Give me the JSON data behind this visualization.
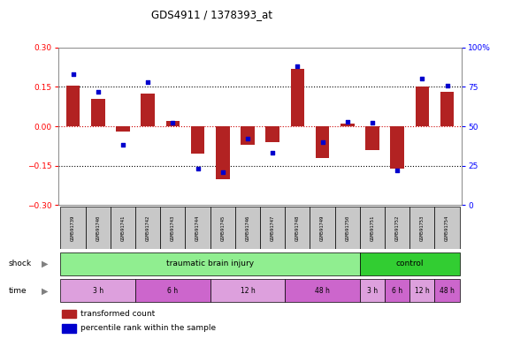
{
  "title": "GDS4911 / 1378393_at",
  "samples": [
    "GSM591739",
    "GSM591740",
    "GSM591741",
    "GSM591742",
    "GSM591743",
    "GSM591744",
    "GSM591745",
    "GSM591746",
    "GSM591747",
    "GSM591748",
    "GSM591749",
    "GSM591750",
    "GSM591751",
    "GSM591752",
    "GSM591753",
    "GSM591754"
  ],
  "bar_values": [
    0.155,
    0.105,
    -0.02,
    0.125,
    0.02,
    -0.105,
    -0.2,
    -0.07,
    -0.06,
    0.22,
    -0.12,
    0.01,
    -0.09,
    -0.16,
    0.15,
    0.13
  ],
  "dot_values": [
    83,
    72,
    38,
    78,
    52,
    23,
    21,
    42,
    33,
    88,
    40,
    53,
    52,
    22,
    80,
    76
  ],
  "ylim_left": [
    -0.3,
    0.3
  ],
  "ylim_right": [
    0,
    100
  ],
  "yticks_left": [
    -0.3,
    -0.15,
    0.0,
    0.15,
    0.3
  ],
  "yticks_right": [
    0,
    25,
    50,
    75,
    100
  ],
  "bar_color": "#b22222",
  "dot_color": "#0000cd",
  "zero_line_color": "#cc0000",
  "background_color": "#ffffff",
  "sample_box_color": "#c8c8c8",
  "n_samples": 16,
  "shock_groups": [
    {
      "label": "traumatic brain injury",
      "start": 0,
      "end": 12,
      "color": "#90ee90"
    },
    {
      "label": "control",
      "start": 12,
      "end": 16,
      "color": "#32cd32"
    }
  ],
  "time_groups": [
    {
      "label": "3 h",
      "start": 0,
      "end": 3,
      "color": "#dda0dd"
    },
    {
      "label": "6 h",
      "start": 3,
      "end": 6,
      "color": "#cc66cc"
    },
    {
      "label": "12 h",
      "start": 6,
      "end": 9,
      "color": "#dda0dd"
    },
    {
      "label": "48 h",
      "start": 9,
      "end": 12,
      "color": "#cc66cc"
    },
    {
      "label": "3 h",
      "start": 12,
      "end": 13,
      "color": "#dda0dd"
    },
    {
      "label": "6 h",
      "start": 13,
      "end": 14,
      "color": "#cc66cc"
    },
    {
      "label": "12 h",
      "start": 14,
      "end": 15,
      "color": "#dda0dd"
    },
    {
      "label": "48 h",
      "start": 15,
      "end": 16,
      "color": "#cc66cc"
    }
  ],
  "legend_items": [
    {
      "label": "transformed count",
      "color": "#b22222"
    },
    {
      "label": "percentile rank within the sample",
      "color": "#0000cd"
    }
  ]
}
